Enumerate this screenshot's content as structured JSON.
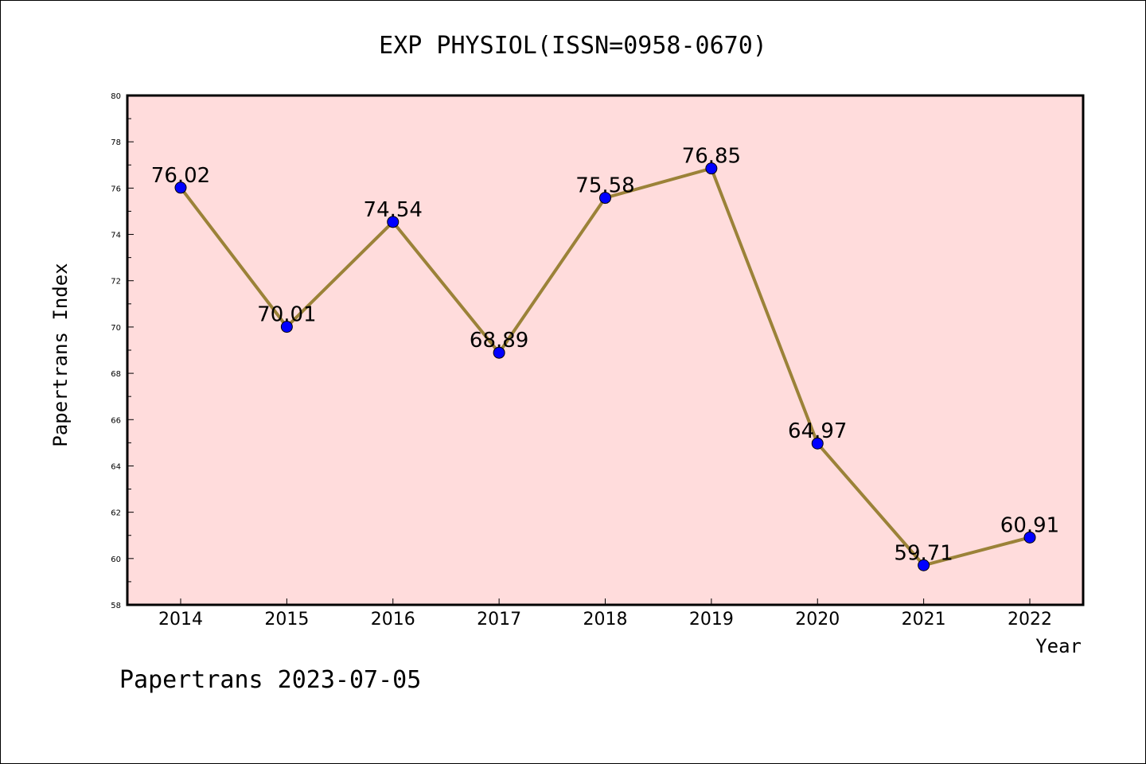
{
  "chart_data": {
    "type": "line",
    "title": "EXP PHYSIOL(ISSN=0958-0670)",
    "xlabel": "Year",
    "ylabel": "Papertrans Index",
    "categories": [
      "2014",
      "2015",
      "2016",
      "2017",
      "2018",
      "2019",
      "2020",
      "2021",
      "2022"
    ],
    "values": [
      76.02,
      70.01,
      74.54,
      68.89,
      75.58,
      76.85,
      64.97,
      59.71,
      60.91
    ],
    "data_labels": [
      "76.02",
      "70.01",
      "74.54",
      "68.89",
      "75.58",
      "76.85",
      "64.97",
      "59.71",
      "60.91"
    ],
    "ylim": [
      58,
      80
    ],
    "yticks": [
      58,
      60,
      62,
      64,
      66,
      68,
      70,
      72,
      74,
      76,
      78,
      80
    ],
    "grid": false,
    "legend": "none",
    "plot_background": "#ffdcdc",
    "line_color": "#9b8238",
    "marker_color": "#0000ff"
  },
  "footer": "Papertrans 2023-07-05"
}
